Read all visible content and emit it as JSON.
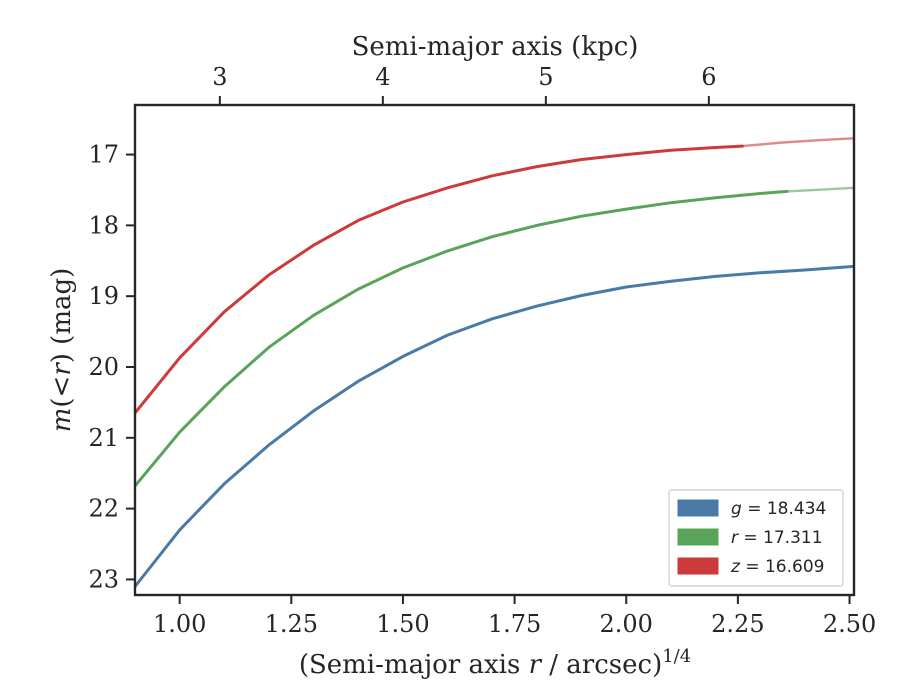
{
  "chart_data": {
    "type": "line",
    "xlabel_bottom": "(Semi-major axis r / arcsec)^{1/4}",
    "xlabel_top": "Semi-major axis (kpc)",
    "ylabel": "m(<r) (mag)",
    "xlim": [
      0.9,
      2.51
    ],
    "ylim": [
      23.22,
      16.3
    ],
    "y_inverted": true,
    "x_ticks": [
      1.0,
      1.25,
      1.5,
      1.75,
      2.0,
      2.25,
      2.5
    ],
    "x_tick_labels": [
      "1.00",
      "1.25",
      "1.50",
      "1.75",
      "2.00",
      "2.25",
      "2.50"
    ],
    "y_ticks": [
      17,
      18,
      19,
      20,
      21,
      22,
      23
    ],
    "y_tick_labels": [
      "17",
      "18",
      "19",
      "20",
      "21",
      "22",
      "23"
    ],
    "top_ticks_kpc": [
      3,
      4,
      5,
      6
    ],
    "top_tick_labels": [
      "3",
      "4",
      "5",
      "6"
    ],
    "top_axis_positions_x": [
      1.09,
      1.455,
      1.82,
      2.185
    ],
    "series": [
      {
        "name": "g = 18.434",
        "band": "g",
        "legend_value": "18.434",
        "color": "#4a7aa6",
        "x": [
          0.9,
          1.0,
          1.1,
          1.2,
          1.3,
          1.4,
          1.5,
          1.6,
          1.7,
          1.8,
          1.9,
          2.0,
          2.1,
          2.2,
          2.3,
          2.4,
          2.51
        ],
        "y": [
          23.1,
          22.3,
          21.65,
          21.1,
          20.62,
          20.2,
          19.85,
          19.55,
          19.32,
          19.14,
          18.99,
          18.87,
          18.79,
          18.72,
          18.67,
          18.63,
          18.58
        ],
        "faded_from_x": null
      },
      {
        "name": "r = 17.311",
        "band": "r",
        "legend_value": "17.311",
        "color": "#5aa45a",
        "x": [
          0.9,
          1.0,
          1.1,
          1.2,
          1.3,
          1.4,
          1.5,
          1.6,
          1.7,
          1.8,
          1.9,
          2.0,
          2.1,
          2.2,
          2.3,
          2.36,
          2.45,
          2.51
        ],
        "y": [
          21.68,
          20.92,
          20.28,
          19.72,
          19.27,
          18.9,
          18.6,
          18.36,
          18.16,
          18.0,
          17.87,
          17.77,
          17.68,
          17.61,
          17.55,
          17.52,
          17.49,
          17.47
        ],
        "faded_from_x": 2.36
      },
      {
        "name": "z = 16.609",
        "band": "z",
        "legend_value": "16.609",
        "color": "#cc3a3a",
        "x": [
          0.9,
          1.0,
          1.1,
          1.2,
          1.3,
          1.4,
          1.5,
          1.6,
          1.7,
          1.8,
          1.9,
          2.0,
          2.1,
          2.2,
          2.26,
          2.35,
          2.45,
          2.51
        ],
        "y": [
          20.65,
          19.87,
          19.22,
          18.7,
          18.28,
          17.93,
          17.67,
          17.47,
          17.3,
          17.17,
          17.07,
          17.0,
          16.94,
          16.9,
          16.88,
          16.83,
          16.79,
          16.77
        ],
        "faded_from_x": 2.26
      }
    ],
    "legend": {
      "placement": "lower-right",
      "entries": [
        "g = 18.434",
        "r = 17.311",
        "z = 16.609"
      ]
    },
    "grid": false
  }
}
